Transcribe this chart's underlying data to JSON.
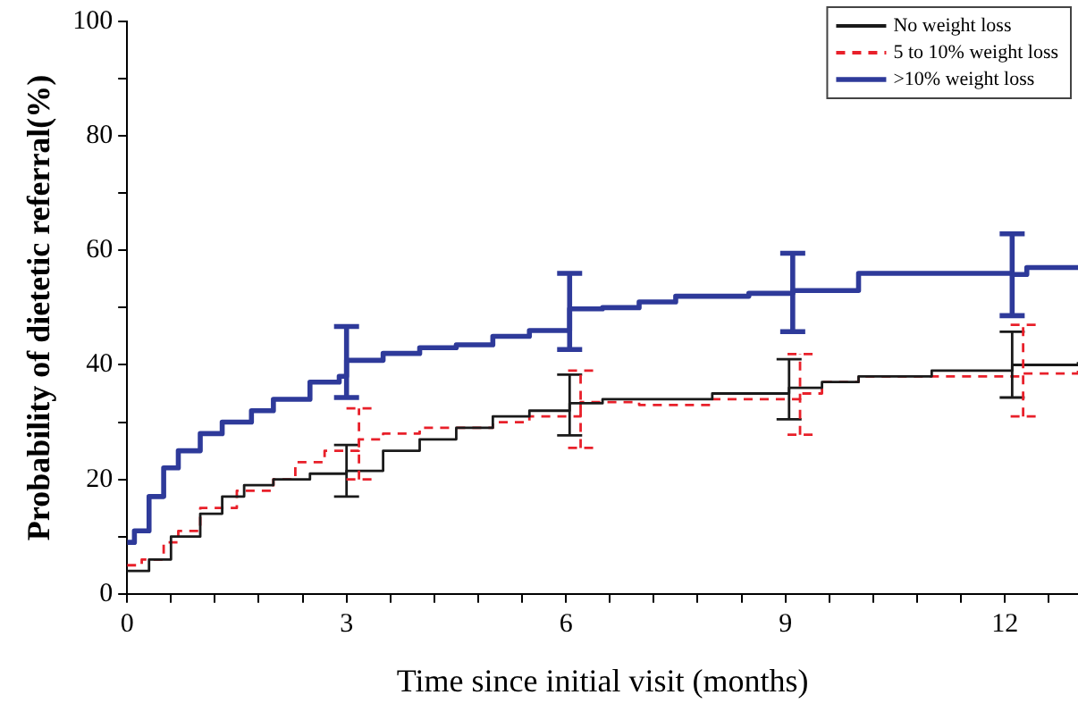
{
  "chart_data": {
    "type": "step",
    "xlabel": "Time since initial visit (months)",
    "ylabel": "Probability of dietetic referral(%)",
    "xlim": [
      0,
      13
    ],
    "xticks": [
      0,
      {
        "value": 0.6,
        "label": null
      },
      {
        "value": 1.2,
        "label": null
      },
      {
        "value": 1.8,
        "label": null
      },
      {
        "value": 2.4,
        "label": null
      },
      3,
      {
        "value": 3.6,
        "label": null
      },
      {
        "value": 4.2,
        "label": null
      },
      {
        "value": 4.8,
        "label": null
      },
      {
        "value": 5.4,
        "label": null
      },
      6,
      {
        "value": 6.6,
        "label": null
      },
      {
        "value": 7.2,
        "label": null
      },
      {
        "value": 7.8,
        "label": null
      },
      {
        "value": 8.4,
        "label": null
      },
      9,
      {
        "value": 9.6,
        "label": null
      },
      {
        "value": 10.2,
        "label": null
      },
      {
        "value": 10.8,
        "label": null
      },
      {
        "value": 11.4,
        "label": null
      },
      12,
      {
        "value": 12.6,
        "label": null
      }
    ],
    "ylim": [
      0,
      100
    ],
    "yticks": [
      0,
      {
        "value": 10,
        "label": null
      },
      20,
      {
        "value": 30,
        "label": null
      },
      40,
      {
        "value": 50,
        "label": null
      },
      60,
      {
        "value": 70,
        "label": null
      },
      80,
      {
        "value": 90,
        "label": null
      },
      100
    ],
    "grid": false,
    "legend": "top right",
    "marker": "none",
    "series": [
      {
        "name": "No weight loss",
        "color": "#1a1a1a",
        "line_style": "solid",
        "x": [
          0,
          0.3,
          0.6,
          1.0,
          1.3,
          1.6,
          2.0,
          2.5,
          3.0,
          3.5,
          4.0,
          4.5,
          5.0,
          5.5,
          6.05,
          6.5,
          7.0,
          8.0,
          9.05,
          9.5,
          10.0,
          11.0,
          12.1,
          12.5,
          13
        ],
        "values": [
          4,
          6,
          10,
          14,
          17,
          19,
          20,
          21,
          21.5,
          25,
          27,
          29,
          31,
          32,
          33.3,
          34,
          34,
          35,
          36,
          37,
          38,
          39,
          40,
          40,
          40.5
        ],
        "errors": [
          null,
          null,
          null,
          null,
          null,
          null,
          null,
          null,
          [
            17,
            26
          ],
          null,
          null,
          null,
          null,
          null,
          [
            27.7,
            38.3
          ],
          null,
          null,
          null,
          [
            30.5,
            41
          ],
          null,
          null,
          null,
          [
            34.3,
            45.8
          ],
          null,
          null
        ]
      },
      {
        "name": "5 to 10% weight loss",
        "color": "#e8202a",
        "line_style": "dashed",
        "x": [
          0,
          0.2,
          0.5,
          0.7,
          1.0,
          1.5,
          2.0,
          2.3,
          2.7,
          3.17,
          3.5,
          4.0,
          5.0,
          5.5,
          6.2,
          7.0,
          8.0,
          9.2,
          9.5,
          10.0,
          11.0,
          12.25,
          13
        ],
        "values": [
          5,
          6,
          9,
          11,
          15,
          18,
          20,
          23,
          25,
          27,
          28,
          29,
          30,
          31,
          33.5,
          33,
          34,
          35,
          37,
          38,
          38,
          38.5,
          39
        ],
        "errors": [
          null,
          null,
          null,
          null,
          null,
          null,
          null,
          null,
          null,
          [
            20,
            32.4
          ],
          null,
          null,
          null,
          null,
          [
            25.5,
            39
          ],
          null,
          null,
          [
            27.8,
            41.9
          ],
          null,
          null,
          null,
          [
            31,
            47
          ],
          null
        ]
      },
      {
        "name": ">10% weight loss",
        "color": "#2e3a9a",
        "line_style": "solid",
        "x": [
          0,
          0.1,
          0.3,
          0.5,
          0.7,
          1.0,
          1.3,
          1.7,
          2.0,
          2.5,
          2.9,
          3.0,
          3.5,
          4.0,
          4.5,
          5.0,
          5.5,
          6.05,
          6.5,
          7.0,
          7.5,
          8.5,
          9.1,
          9.5,
          10.0,
          11.5,
          12.1,
          12.3,
          13
        ],
        "values": [
          9,
          11,
          17,
          22,
          25,
          28,
          30,
          32,
          34,
          37,
          38,
          40.8,
          42,
          43,
          43.5,
          45,
          46,
          49.8,
          50,
          51,
          52,
          52.5,
          53,
          53,
          56,
          56,
          55.8,
          57,
          57
        ],
        "errors": [
          null,
          null,
          null,
          null,
          null,
          null,
          null,
          null,
          null,
          null,
          null,
          [
            34.3,
            46.7
          ],
          null,
          null,
          null,
          null,
          null,
          [
            42.7,
            56
          ],
          null,
          null,
          null,
          null,
          [
            45.8,
            59.5
          ],
          null,
          null,
          null,
          [
            48.6,
            62.9
          ],
          null,
          null
        ]
      }
    ]
  }
}
